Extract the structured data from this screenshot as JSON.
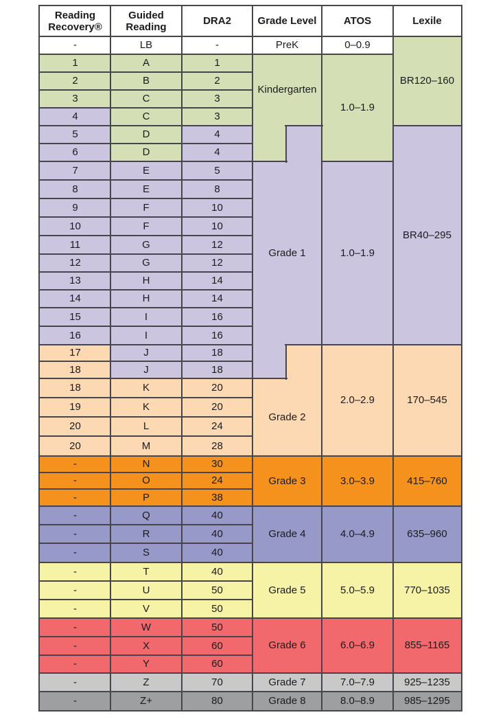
{
  "page": {
    "background": "#ffffff"
  },
  "colors": {
    "white": "#ffffff",
    "kindergarten": "#d5dfb5",
    "grade1": "#ccc5e0",
    "grade2": "#fcd9b2",
    "grade3": "#f5921e",
    "grade4": "#9799c8",
    "grade5": "#f6f2a6",
    "grade6": "#f1696c",
    "grade7": "#c9c9c9",
    "grade8": "#9e9fa1",
    "line": "#46454b",
    "text": "#1b1b1d"
  },
  "headers": [
    "Reading Recovery®",
    "Guided Reading",
    "DRA2",
    "Grade Level",
    "ATOS",
    "Lexile"
  ],
  "rows": [
    {
      "rr": "-",
      "gr": "LB",
      "dr": "-",
      "bands": [
        "white",
        "white",
        "white"
      ]
    },
    {
      "rr": "1",
      "gr": "A",
      "dr": "1",
      "bands": [
        "kindergarten",
        "kindergarten",
        "kindergarten"
      ]
    },
    {
      "rr": "2",
      "gr": "B",
      "dr": "2",
      "bands": [
        "kindergarten",
        "kindergarten",
        "kindergarten"
      ]
    },
    {
      "rr": "3",
      "gr": "C",
      "dr": "3",
      "bands": [
        "kindergarten",
        "kindergarten",
        "kindergarten"
      ]
    },
    {
      "rr": "4",
      "gr": "C",
      "dr": "3",
      "bands": [
        "grade1",
        "kindergarten",
        "kindergarten"
      ]
    },
    {
      "rr": "5",
      "gr": "D",
      "dr": "4",
      "bands": [
        "grade1",
        "kindergarten",
        "grade1"
      ]
    },
    {
      "rr": "6",
      "gr": "D",
      "dr": "4",
      "bands": [
        "grade1",
        "kindergarten",
        "grade1"
      ]
    },
    {
      "rr": "7",
      "gr": "E",
      "dr": "5",
      "bands": [
        "grade1",
        "grade1",
        "grade1"
      ]
    },
    {
      "rr": "8",
      "gr": "E",
      "dr": "8",
      "bands": [
        "grade1",
        "grade1",
        "grade1"
      ]
    },
    {
      "rr": "9",
      "gr": "F",
      "dr": "10",
      "bands": [
        "grade1",
        "grade1",
        "grade1"
      ]
    },
    {
      "rr": "10",
      "gr": "F",
      "dr": "10",
      "bands": [
        "grade1",
        "grade1",
        "grade1"
      ]
    },
    {
      "rr": "11",
      "gr": "G",
      "dr": "12",
      "bands": [
        "grade1",
        "grade1",
        "grade1"
      ]
    },
    {
      "rr": "12",
      "gr": "G",
      "dr": "12",
      "bands": [
        "grade1",
        "grade1",
        "grade1"
      ]
    },
    {
      "rr": "13",
      "gr": "H",
      "dr": "14",
      "bands": [
        "grade1",
        "grade1",
        "grade1"
      ]
    },
    {
      "rr": "14",
      "gr": "H",
      "dr": "14",
      "bands": [
        "grade1",
        "grade1",
        "grade1"
      ]
    },
    {
      "rr": "15",
      "gr": "I",
      "dr": "16",
      "bands": [
        "grade1",
        "grade1",
        "grade1"
      ]
    },
    {
      "rr": "16",
      "gr": "I",
      "dr": "16",
      "bands": [
        "grade1",
        "grade1",
        "grade1"
      ]
    },
    {
      "rr": "17",
      "gr": "J",
      "dr": "18",
      "bands": [
        "grade2",
        "grade1",
        "grade1"
      ]
    },
    {
      "rr": "18",
      "gr": "J",
      "dr": "18",
      "bands": [
        "grade2",
        "grade1",
        "grade1"
      ]
    },
    {
      "rr": "18",
      "gr": "K",
      "dr": "20",
      "bands": [
        "grade2",
        "grade2",
        "grade2"
      ]
    },
    {
      "rr": "19",
      "gr": "K",
      "dr": "20",
      "bands": [
        "grade2",
        "grade2",
        "grade2"
      ]
    },
    {
      "rr": "20",
      "gr": "L",
      "dr": "24",
      "bands": [
        "grade2",
        "grade2",
        "grade2"
      ]
    },
    {
      "rr": "20",
      "gr": "M",
      "dr": "28",
      "bands": [
        "grade2",
        "grade2",
        "grade2"
      ]
    },
    {
      "rr": "-",
      "gr": "N",
      "dr": "30",
      "bands": [
        "grade3",
        "grade3",
        "grade3"
      ]
    },
    {
      "rr": "-",
      "gr": "O",
      "dr": "24",
      "bands": [
        "grade3",
        "grade3",
        "grade3"
      ]
    },
    {
      "rr": "-",
      "gr": "P",
      "dr": "38",
      "bands": [
        "grade3",
        "grade3",
        "grade3"
      ]
    },
    {
      "rr": "-",
      "gr": "Q",
      "dr": "40",
      "bands": [
        "grade4",
        "grade4",
        "grade4"
      ]
    },
    {
      "rr": "-",
      "gr": "R",
      "dr": "40",
      "bands": [
        "grade4",
        "grade4",
        "grade4"
      ]
    },
    {
      "rr": "-",
      "gr": "S",
      "dr": "40",
      "bands": [
        "grade4",
        "grade4",
        "grade4"
      ]
    },
    {
      "rr": "-",
      "gr": "T",
      "dr": "40",
      "bands": [
        "grade5",
        "grade5",
        "grade5"
      ]
    },
    {
      "rr": "-",
      "gr": "U",
      "dr": "50",
      "bands": [
        "grade5",
        "grade5",
        "grade5"
      ]
    },
    {
      "rr": "-",
      "gr": "V",
      "dr": "50",
      "bands": [
        "grade5",
        "grade5",
        "grade5"
      ]
    },
    {
      "rr": "-",
      "gr": "W",
      "dr": "50",
      "bands": [
        "grade6",
        "grade6",
        "grade6"
      ]
    },
    {
      "rr": "-",
      "gr": "X",
      "dr": "60",
      "bands": [
        "grade6",
        "grade6",
        "grade6"
      ]
    },
    {
      "rr": "-",
      "gr": "Y",
      "dr": "60",
      "bands": [
        "grade6",
        "grade6",
        "grade6"
      ]
    },
    {
      "rr": "-",
      "gr": "Z",
      "dr": "70",
      "bands": [
        "grade7",
        "grade7",
        "grade7"
      ]
    },
    {
      "rr": "-",
      "gr": "Z+",
      "dr": "80",
      "bands": [
        "grade8",
        "grade8",
        "grade8"
      ]
    }
  ],
  "cells": {
    "gl_prek": "PreK",
    "atos_prek": "0–0.9",
    "gl_k": "Kindergarten",
    "atos_k": "1.0–1.9",
    "lex_k": "BR120–160",
    "gl_1": "Grade 1",
    "atos_1": "1.0–1.9",
    "lex_1": "BR40–295",
    "gl_2": "Grade 2",
    "atos_2": "2.0–2.9",
    "lex_2": "170–545",
    "gl_3": "Grade 3",
    "atos_3": "3.0–3.9",
    "lex_3": "415–760",
    "gl_4": "Grade 4",
    "atos_4": "4.0–4.9",
    "lex_4": "635–960",
    "gl_5": "Grade 5",
    "atos_5": "5.0–5.9",
    "lex_5": "770–1035",
    "gl_6": "Grade 6",
    "atos_6": "6.0–6.9",
    "lex_6": "855–1165",
    "gl_7": "Grade 7",
    "atos_7": "7.0–7.9",
    "lex_7": "925–1235",
    "gl_8": "Grade 8",
    "atos_8": "8.0–8.9",
    "lex_8": "985–1295"
  }
}
